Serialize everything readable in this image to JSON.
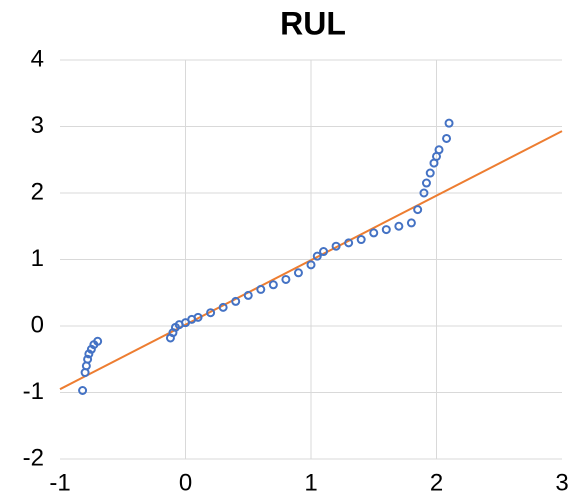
{
  "chart_data": {
    "type": "scatter",
    "title": "RUL",
    "xlim": [
      -1,
      3
    ],
    "ylim": [
      -2,
      4
    ],
    "xticks": [
      -1,
      0,
      1,
      2,
      3
    ],
    "yticks": [
      -2,
      -1,
      0,
      1,
      2,
      3,
      4
    ],
    "grid": true,
    "series": [
      {
        "color": "#4472c4",
        "x": [
          -0.82,
          -0.8,
          -0.79,
          -0.78,
          -0.77,
          -0.75,
          -0.73,
          -0.7,
          -0.12,
          -0.1,
          -0.08,
          -0.05,
          0,
          0.05,
          0.1,
          0.2,
          0.3,
          0.4,
          0.5,
          0.6,
          0.7,
          0.8,
          0.9,
          1.0,
          1.05,
          1.1,
          1.2,
          1.3,
          1.4,
          1.5,
          1.6,
          1.7,
          1.8,
          1.85,
          1.9,
          1.92,
          1.95,
          1.98,
          2.0,
          2.02,
          2.08,
          2.1
        ],
        "values": [
          -0.97,
          -0.7,
          -0.6,
          -0.5,
          -0.42,
          -0.35,
          -0.28,
          -0.23,
          -0.18,
          -0.1,
          -0.02,
          0.02,
          0.05,
          0.1,
          0.13,
          0.2,
          0.28,
          0.37,
          0.46,
          0.55,
          0.62,
          0.7,
          0.8,
          0.92,
          1.05,
          1.12,
          1.2,
          1.25,
          1.3,
          1.4,
          1.45,
          1.5,
          1.55,
          1.75,
          2.0,
          2.15,
          2.3,
          2.45,
          2.55,
          2.65,
          2.82,
          3.05
        ]
      }
    ],
    "trendline": {
      "color": "#ed7d31",
      "x": [
        -1,
        3
      ],
      "values": [
        -0.95,
        2.93
      ]
    }
  }
}
